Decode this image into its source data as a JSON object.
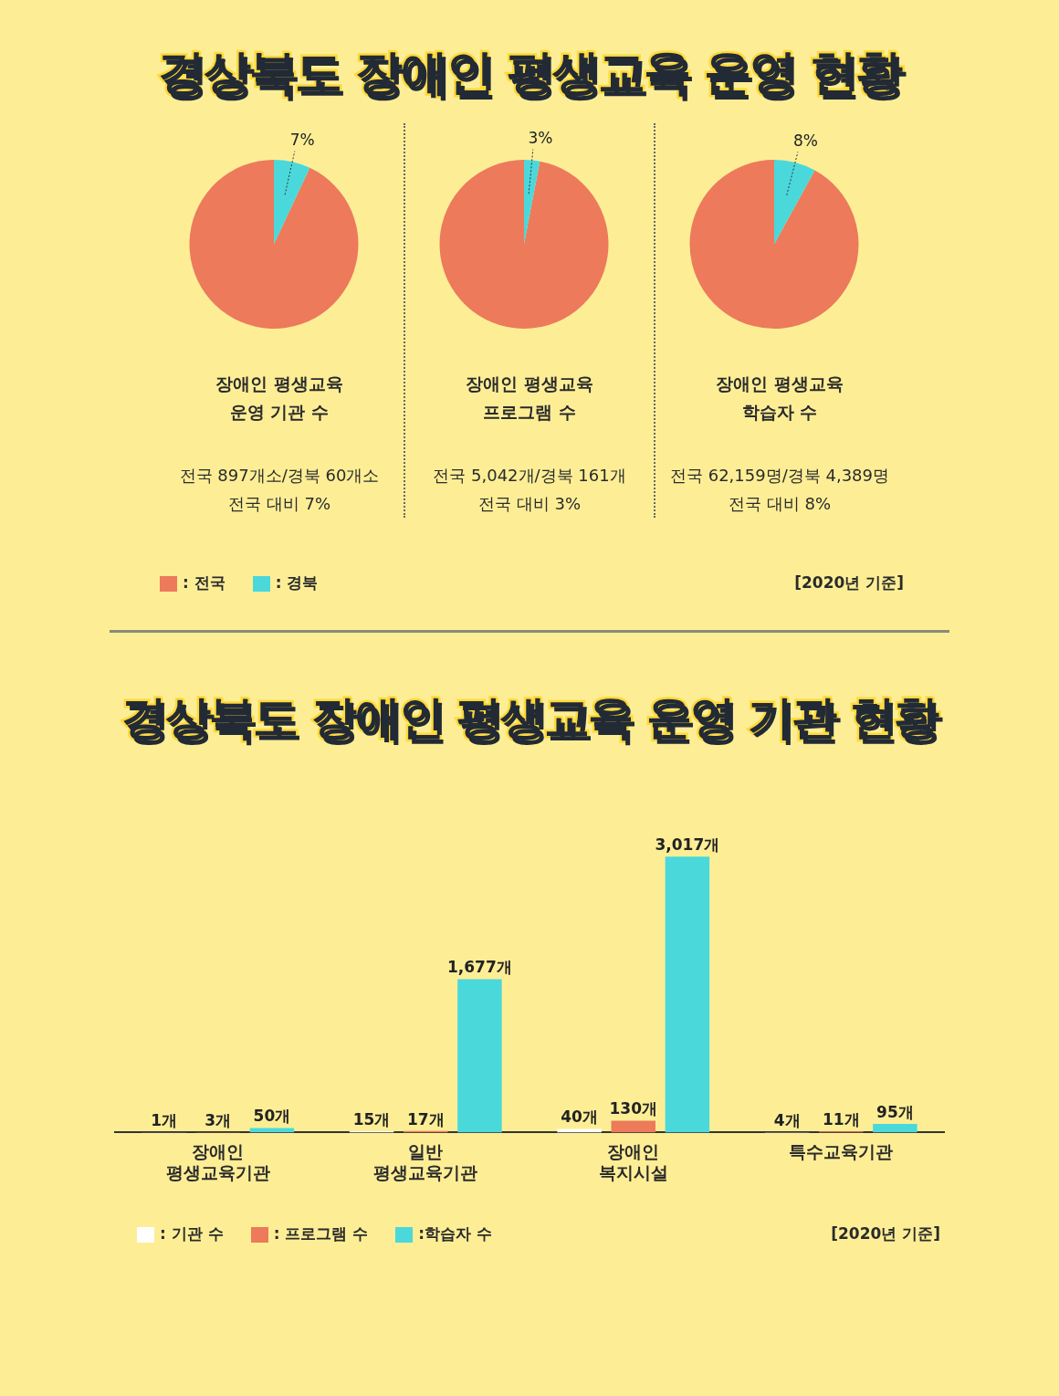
{
  "chart_data": [
    {
      "type": "pie",
      "title": "경상북도 장애인 평생교육 운영 현황",
      "subtitle": "장애인 평생교육\n운영 기관 수",
      "categories": [
        ": 전국",
        ": 경북"
      ],
      "values": [
        93,
        7
      ],
      "colors": [
        "#ec7a5b",
        "#4ad8db"
      ],
      "value_labels": [
        null,
        "7%"
      ],
      "legend": "bottom left",
      "annotations": [
        "전국 897개소/경북 60개소",
        "전국 대비 7%"
      ]
    },
    {
      "type": "pie",
      "subtitle": "장애인 평생교육\n프로그램 수",
      "categories": [
        null,
        null
      ],
      "values": [
        97,
        3
      ],
      "colors": [
        "#ec7a5b",
        "#4ad8db"
      ],
      "value_labels": [
        null,
        "3%"
      ],
      "annotations": [
        "전국 5,042개/경북 161개",
        "전국 대비 3%"
      ]
    },
    {
      "type": "pie",
      "subtitle": "장애인 평생교육\n학습자 수",
      "categories": [
        null,
        null
      ],
      "values": [
        92,
        8
      ],
      "colors": [
        "#ec7a5b",
        "#4ad8db"
      ],
      "value_labels": [
        null,
        "8%"
      ],
      "annotations": [
        "전국 62,159명/경북 4,389명",
        "전국 대비 8%",
        "[2020년 기준]"
      ]
    },
    {
      "type": "bar",
      "title": "경상북도 장애인 평생교육 운영 기관 현황",
      "categories": [
        "장애인\n평생교육기관",
        "일반\n평생교육기관",
        "장애인\n복지시설",
        "특수교육기관"
      ],
      "tick_labels": "x",
      "legend": "bottom left",
      "annotations": [
        "[2020년 기준]"
      ],
      "series": [
        {
          "name": ": 기관 수",
          "color": "#ffffff",
          "values": [
            1,
            15,
            40,
            4
          ],
          "value_labels": [
            "1개",
            "15개",
            "40개",
            "4개"
          ]
        },
        {
          "name": ": 프로그램 수",
          "color": "#ec7a5b",
          "values": [
            3,
            17,
            130,
            11
          ],
          "value_labels": [
            "3개",
            "17개",
            "130개",
            "11개"
          ]
        },
        {
          "name": ":학습자 수",
          "color": "#4ad8db",
          "values": [
            50,
            1677,
            3017,
            95
          ],
          "value_labels": [
            "50개",
            "1,677개",
            "3,017개",
            "95개"
          ]
        }
      ]
    }
  ]
}
